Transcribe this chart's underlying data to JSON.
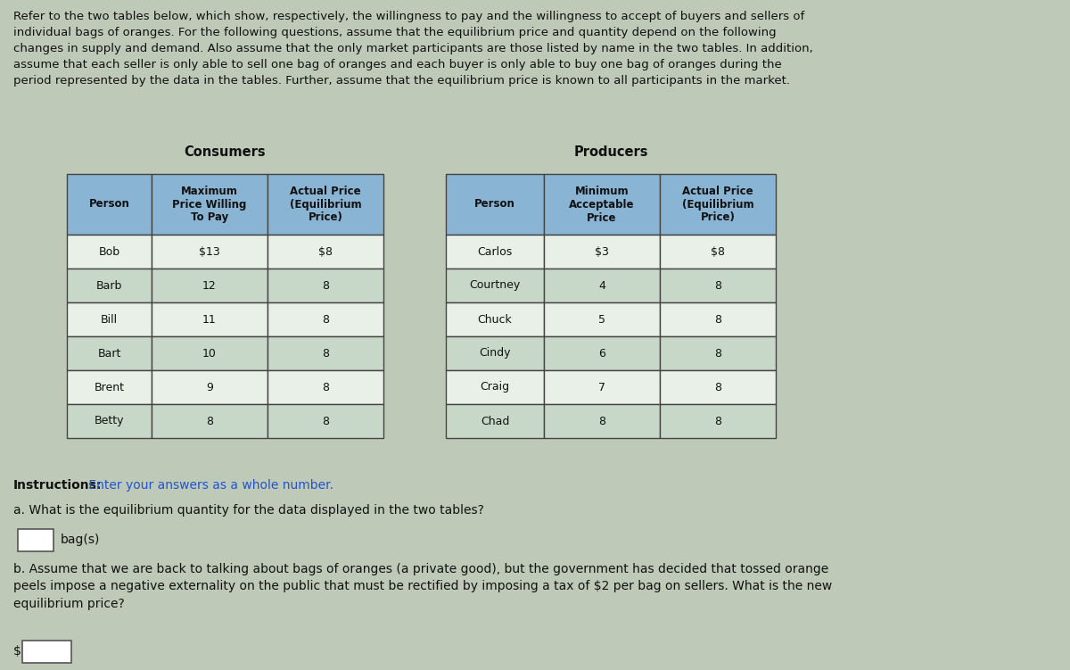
{
  "bg_color": "#bfc9b8",
  "intro_text": "Refer to the two tables below, which show, respectively, the willingness to pay and the willingness to accept of buyers and sellers of\nindividual bags of oranges. For the following questions, assume that the equilibrium price and quantity depend on the following\nchanges in supply and demand. Also assume that the only market participants are those listed by name in the two tables. In addition,\nassume that each seller is only able to sell one bag of oranges and each buyer is only able to buy one bag of oranges during the\nperiod represented by the data in the tables. Further, assume that the equilibrium price is known to all participants in the market.",
  "consumers_label": "Consumers",
  "producers_label": "Producers",
  "consumers_headers": [
    "Person",
    "Maximum\nPrice Willing\nTo Pay",
    "Actual Price\n(Equilibrium\nPrice)"
  ],
  "producers_headers": [
    "Person",
    "Minimum\nAcceptable\nPrice",
    "Actual Price\n(Equilibrium\nPrice)"
  ],
  "consumers_data": [
    [
      "Bob",
      "$13",
      "$8"
    ],
    [
      "Barb",
      "12",
      "8"
    ],
    [
      "Bill",
      "11",
      "8"
    ],
    [
      "Bart",
      "10",
      "8"
    ],
    [
      "Brent",
      "9",
      "8"
    ],
    [
      "Betty",
      "8",
      "8"
    ]
  ],
  "producers_data": [
    [
      "Carlos",
      "$3",
      "$8"
    ],
    [
      "Courtney",
      "4",
      "8"
    ],
    [
      "Chuck",
      "5",
      "8"
    ],
    [
      "Cindy",
      "6",
      "8"
    ],
    [
      "Craig",
      "7",
      "8"
    ],
    [
      "Chad",
      "8",
      "8"
    ]
  ],
  "header_bg": "#8ab4d4",
  "row_bg_white": "#e8f0e8",
  "row_bg_light": "#c8d8c8",
  "table_border": "#444444",
  "instructions_bold": "Instructions:",
  "instructions_rest": " Enter your answers as a whole number.",
  "question_a": "a. What is the equilibrium quantity for the data displayed in the two tables?",
  "answer_a_suffix": "bag(s)",
  "question_b": "b. Assume that we are back to talking about bags of oranges (a private good), but the government has decided that tossed orange\npeels impose a negative externality on the public that must be rectified by imposing a tax of $2 per bag on sellers. What is the new\nequilibrium price?",
  "answer_b_prefix": "$",
  "text_color": "#111111",
  "blue_text": "#2255cc"
}
